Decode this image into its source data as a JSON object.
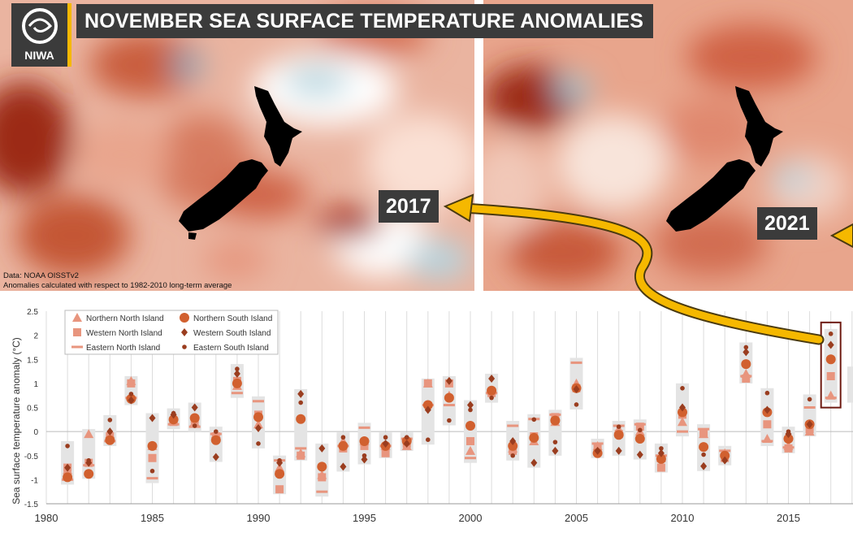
{
  "header": {
    "title": "NOVEMBER SEA SURFACE TEMPERATURE ANOMALIES",
    "logo_text": "NIWA"
  },
  "maps": {
    "left_year": "2017",
    "right_year": "2021",
    "data_note": "Data: NOAA OISSTv2",
    "anomaly_note": "Anomalies calculated with respect to 1982-2010 long-term average"
  },
  "colors": {
    "warm_dark": "#8f1e0e",
    "warm_mid": "#d5684c",
    "warm_light": "#f2c2b0",
    "cool": "#8fbccb",
    "arrow": "#f5b800",
    "marker_light": "#e8957e",
    "marker_mid": "#d1602f",
    "marker_dark": "#9a3d1f",
    "range_bar": "#e4e4e4",
    "highlight_box": "#6e1b12"
  },
  "chart_data": {
    "type": "scatter",
    "title": "",
    "xlabel": "",
    "ylabel": "Sea surface temperature anomaly (°C)",
    "xlim": [
      1980,
      2018
    ],
    "ylim": [
      -1.5,
      2.5
    ],
    "xticks": [
      1980,
      1985,
      1990,
      1995,
      2000,
      2005,
      2010,
      2015
    ],
    "yticks": [
      -1.5,
      -1,
      -0.5,
      0,
      0.5,
      1,
      1.5,
      2,
      2.5
    ],
    "grid": "vertical lines each year",
    "legend_position": "top-left",
    "highlight_year": 2017,
    "x": [
      1981,
      1982,
      1983,
      1984,
      1985,
      1986,
      1987,
      1988,
      1989,
      1990,
      1991,
      1992,
      1993,
      1994,
      1995,
      1996,
      1997,
      1998,
      1999,
      2000,
      2001,
      2002,
      2003,
      2004,
      2005,
      2006,
      2007,
      2008,
      2009,
      2010,
      2011,
      2012,
      2013,
      2014,
      2015,
      2016,
      2017
    ],
    "series": [
      {
        "name": "Northern North Island",
        "marker": "triangle",
        "values": [
          -0.8,
          -0.05,
          -0.05,
          1.05,
          -0.3,
          0.25,
          0.2,
          -0.05,
          0.95,
          0.15,
          -0.75,
          -0.45,
          -0.9,
          -0.2,
          -0.2,
          -0.3,
          -0.3,
          1.0,
          0.75,
          -0.4,
          0.85,
          -0.35,
          -0.2,
          0.2,
          1.0,
          -0.3,
          0.05,
          0.0,
          -0.55,
          0.2,
          -0.05,
          -0.45,
          1.2,
          -0.15,
          -0.3,
          0.0,
          0.75
        ]
      },
      {
        "name": "Western North Island",
        "marker": "square",
        "values": [
          -0.75,
          -0.65,
          -0.1,
          1.0,
          -0.55,
          0.2,
          0.25,
          -0.1,
          1.05,
          0.35,
          -1.2,
          -0.5,
          -0.95,
          -0.35,
          -0.3,
          -0.45,
          -0.25,
          1.0,
          1.0,
          -0.2,
          0.8,
          -0.4,
          -0.1,
          0.3,
          0.9,
          -0.35,
          -0.05,
          0.1,
          -0.75,
          0.35,
          -0.05,
          -0.55,
          1.1,
          0.15,
          -0.35,
          0.05,
          1.15
        ]
      },
      {
        "name": "Eastern North Island",
        "marker": "dash",
        "values": [
          -1.0,
          -0.7,
          -0.2,
          0.7,
          -0.97,
          0.15,
          0.1,
          -0.05,
          0.8,
          0.63,
          -0.6,
          -0.35,
          -1.25,
          -0.3,
          0.08,
          -0.3,
          -0.15,
          0.55,
          0.55,
          -0.55,
          0.8,
          0.12,
          0.26,
          0.35,
          1.43,
          -0.25,
          0.12,
          0.15,
          -0.5,
          0.0,
          0.05,
          -0.4,
          1.15,
          -0.2,
          -0.33,
          0.5,
          0.7
        ]
      },
      {
        "name": "Northern South Island",
        "marker": "circle",
        "values": [
          -0.95,
          -0.88,
          -0.18,
          0.68,
          -0.3,
          0.25,
          0.28,
          -0.18,
          1.0,
          0.3,
          -0.88,
          0.26,
          -0.73,
          -0.3,
          -0.2,
          -0.3,
          -0.2,
          0.55,
          0.7,
          0.12,
          0.85,
          -0.3,
          -0.13,
          0.23,
          0.9,
          -0.45,
          -0.07,
          -0.15,
          -0.57,
          0.4,
          -0.32,
          -0.5,
          1.4,
          0.4,
          -0.15,
          0.15,
          1.5
        ]
      },
      {
        "name": "Western South Island",
        "marker": "diamond",
        "values": [
          -0.75,
          -0.65,
          0.0,
          0.65,
          0.28,
          0.35,
          0.5,
          -0.53,
          1.2,
          0.07,
          -0.65,
          0.78,
          -0.35,
          -0.73,
          -0.58,
          -0.25,
          -0.25,
          0.45,
          1.05,
          0.55,
          1.1,
          -0.2,
          -0.65,
          -0.4,
          0.88,
          -0.4,
          -0.4,
          -0.48,
          -0.45,
          0.5,
          -0.72,
          -0.6,
          1.65,
          0.45,
          -0.05,
          0.15,
          1.8
        ]
      },
      {
        "name": "Eastern South Island",
        "marker": "dot",
        "values": [
          -0.3,
          -0.6,
          0.24,
          0.78,
          -0.82,
          0.38,
          0.12,
          0.0,
          1.3,
          -0.25,
          -0.6,
          0.6,
          -0.35,
          -0.12,
          -0.5,
          -0.12,
          -0.12,
          -0.17,
          0.23,
          0.45,
          0.7,
          -0.5,
          0.25,
          -0.22,
          0.56,
          -0.4,
          0.1,
          0.03,
          -0.35,
          0.9,
          -0.48,
          -0.6,
          1.75,
          0.8,
          0.0,
          0.67,
          2.03
        ]
      }
    ]
  }
}
